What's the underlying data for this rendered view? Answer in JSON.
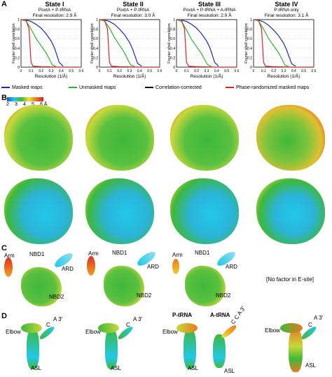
{
  "panels": {
    "a": "A",
    "b": "B",
    "c": "C",
    "d": "D"
  },
  "states": [
    {
      "title": "State I",
      "subtitle": "PoxtA + P-tRNA",
      "resolution": "Final resolution: 2.9 Å"
    },
    {
      "title": "State II",
      "subtitle": "PoxtA + P-tRNA",
      "resolution": "Final resolution: 3.0 Å"
    },
    {
      "title": "State III",
      "subtitle": "PoxtA + P-tRNA + A-tRNA",
      "resolution": "Final resolution: 2.9 Å"
    },
    {
      "title": "State IV",
      "subtitle": "P-tRNA only",
      "resolution": "Final resolution: 3.1 Å"
    }
  ],
  "fsc_axes": {
    "ylabel": "Fourier shell correlation",
    "xlabel": "Resolution (1/Å)",
    "xticks": [
      "0",
      "0.1",
      "0.2",
      "0.3",
      "0.4",
      "0.5",
      "0.6"
    ],
    "yticks": [
      "0",
      "0.2",
      "0.4",
      "0.6",
      "0.8",
      "1"
    ]
  },
  "legend": [
    {
      "label": "Masked maps",
      "color": "#1a2bb8"
    },
    {
      "label": "Unmasked maps",
      "color": "#2fb52f"
    },
    {
      "label": "Correlation-corrected",
      "color": "#000000"
    },
    {
      "label": "Phase-randomized masked maps",
      "color": "#e02020"
    }
  ],
  "chart_data": [
    {
      "type": "line",
      "title": "State I",
      "xlabel": "Resolution (1/Å)",
      "ylabel": "Fourier shell correlation",
      "xlim": [
        0,
        0.6
      ],
      "ylim": [
        0,
        1
      ],
      "series": [
        {
          "name": "Masked maps",
          "x": [
            0,
            0.05,
            0.1,
            0.15,
            0.2,
            0.25,
            0.3,
            0.33,
            0.35,
            0.38,
            0.42
          ],
          "y": [
            1,
            0.99,
            0.96,
            0.9,
            0.82,
            0.7,
            0.55,
            0.42,
            0.3,
            0.1,
            0.02
          ]
        },
        {
          "name": "Unmasked maps",
          "x": [
            0,
            0.05,
            0.1,
            0.15,
            0.2,
            0.25,
            0.28,
            0.31,
            0.35
          ],
          "y": [
            1,
            0.97,
            0.8,
            0.6,
            0.45,
            0.3,
            0.18,
            0.05,
            0.01
          ]
        },
        {
          "name": "Correlation-corrected",
          "x": [
            0,
            0.05,
            0.1,
            0.15,
            0.2,
            0.25,
            0.3,
            0.33,
            0.35,
            0.38,
            0.42
          ],
          "y": [
            1,
            0.99,
            0.96,
            0.9,
            0.82,
            0.7,
            0.55,
            0.42,
            0.3,
            0.1,
            0.02
          ]
        },
        {
          "name": "Phase-randomized masked maps",
          "x": [
            0,
            0.05,
            0.08,
            0.1,
            0.12,
            0.2,
            0.4,
            0.6
          ],
          "y": [
            1,
            0.99,
            0.8,
            0.1,
            0.02,
            0.01,
            0.0,
            0.0
          ]
        }
      ]
    },
    {
      "type": "line",
      "title": "State II",
      "xlabel": "Resolution (1/Å)",
      "ylabel": "Fourier shell correlation",
      "xlim": [
        0,
        0.6
      ],
      "ylim": [
        0,
        1
      ],
      "series": [
        {
          "name": "Masked maps",
          "x": [
            0,
            0.05,
            0.1,
            0.15,
            0.2,
            0.25,
            0.3,
            0.33,
            0.35,
            0.38,
            0.42
          ],
          "y": [
            1,
            0.99,
            0.96,
            0.9,
            0.8,
            0.68,
            0.52,
            0.38,
            0.26,
            0.08,
            0.02
          ]
        },
        {
          "name": "Unmasked maps",
          "x": [
            0,
            0.05,
            0.1,
            0.15,
            0.2,
            0.25,
            0.28,
            0.31,
            0.35
          ],
          "y": [
            1,
            0.97,
            0.82,
            0.62,
            0.46,
            0.3,
            0.17,
            0.05,
            0.01
          ]
        },
        {
          "name": "Correlation-corrected",
          "x": [
            0,
            0.05,
            0.1,
            0.15,
            0.2,
            0.25,
            0.3,
            0.33,
            0.35,
            0.38,
            0.42
          ],
          "y": [
            1,
            0.99,
            0.96,
            0.9,
            0.8,
            0.68,
            0.52,
            0.38,
            0.26,
            0.08,
            0.02
          ]
        },
        {
          "name": "Phase-randomized masked maps",
          "x": [
            0,
            0.05,
            0.08,
            0.1,
            0.12,
            0.2,
            0.4,
            0.6
          ],
          "y": [
            1,
            0.99,
            0.8,
            0.1,
            0.02,
            0.01,
            0.0,
            0.0
          ]
        }
      ]
    },
    {
      "type": "line",
      "title": "State III",
      "xlabel": "Resolution (1/Å)",
      "ylabel": "Fourier shell correlation",
      "xlim": [
        0,
        0.6
      ],
      "ylim": [
        0,
        1
      ],
      "series": [
        {
          "name": "Masked maps",
          "x": [
            0,
            0.05,
            0.1,
            0.15,
            0.2,
            0.25,
            0.3,
            0.33,
            0.35,
            0.38,
            0.42
          ],
          "y": [
            1,
            0.99,
            0.96,
            0.9,
            0.82,
            0.7,
            0.55,
            0.42,
            0.3,
            0.1,
            0.02
          ]
        },
        {
          "name": "Unmasked maps",
          "x": [
            0,
            0.05,
            0.1,
            0.15,
            0.2,
            0.25,
            0.28,
            0.31,
            0.35
          ],
          "y": [
            1,
            0.96,
            0.78,
            0.58,
            0.43,
            0.28,
            0.16,
            0.05,
            0.01
          ]
        },
        {
          "name": "Correlation-corrected",
          "x": [
            0,
            0.05,
            0.1,
            0.15,
            0.2,
            0.25,
            0.3,
            0.33,
            0.35,
            0.38,
            0.42
          ],
          "y": [
            1,
            0.99,
            0.96,
            0.9,
            0.82,
            0.7,
            0.55,
            0.42,
            0.3,
            0.1,
            0.02
          ]
        },
        {
          "name": "Phase-randomized masked maps",
          "x": [
            0,
            0.05,
            0.08,
            0.1,
            0.12,
            0.2,
            0.4,
            0.6
          ],
          "y": [
            1,
            0.99,
            0.8,
            0.1,
            0.02,
            0.01,
            0.0,
            0.0
          ]
        }
      ]
    },
    {
      "type": "line",
      "title": "State IV",
      "xlabel": "Resolution (1/Å)",
      "ylabel": "Fourier shell correlation",
      "xlim": [
        0,
        0.6
      ],
      "ylim": [
        0,
        1
      ],
      "series": [
        {
          "name": "Masked maps",
          "x": [
            0,
            0.05,
            0.1,
            0.15,
            0.2,
            0.25,
            0.3,
            0.33,
            0.35,
            0.38,
            0.42
          ],
          "y": [
            1,
            0.99,
            0.95,
            0.88,
            0.78,
            0.66,
            0.5,
            0.36,
            0.24,
            0.07,
            0.02
          ]
        },
        {
          "name": "Unmasked maps",
          "x": [
            0,
            0.05,
            0.1,
            0.15,
            0.2,
            0.25,
            0.28,
            0.31,
            0.35
          ],
          "y": [
            1,
            0.97,
            0.8,
            0.6,
            0.45,
            0.3,
            0.18,
            0.05,
            0.01
          ]
        },
        {
          "name": "Correlation-corrected",
          "x": [
            0,
            0.05,
            0.1,
            0.15,
            0.2,
            0.25,
            0.3,
            0.33,
            0.35,
            0.38,
            0.42
          ],
          "y": [
            1,
            0.99,
            0.95,
            0.88,
            0.78,
            0.66,
            0.5,
            0.36,
            0.24,
            0.07,
            0.02
          ]
        },
        {
          "name": "Phase-randomized masked maps",
          "x": [
            0,
            0.05,
            0.08,
            0.1,
            0.12,
            0.2,
            0.4,
            0.6
          ],
          "y": [
            1,
            0.99,
            0.8,
            0.1,
            0.02,
            0.01,
            0.0,
            0.0
          ]
        }
      ]
    }
  ],
  "colorbar": {
    "ticks": [
      "2",
      "3",
      "4",
      "5",
      "6 Å"
    ],
    "colors": [
      "#1f4fe0",
      "#22c8e8",
      "#3fb83a",
      "#f0e030",
      "#e87a20",
      "#d82020"
    ]
  },
  "panel_c": {
    "arm": "Arm",
    "nbd1": "NBD1",
    "ard": "ARD",
    "nbd2": "NBD2",
    "no_factor": "[No factor in E-site]"
  },
  "panel_d": {
    "elbow": "Elbow",
    "asl": "ASL",
    "c": "C",
    "a3": "A 3′",
    "ptrna": "P-tRNA",
    "atrna": "A-tRNA",
    "c_a3_rot": "C C A 3′"
  }
}
